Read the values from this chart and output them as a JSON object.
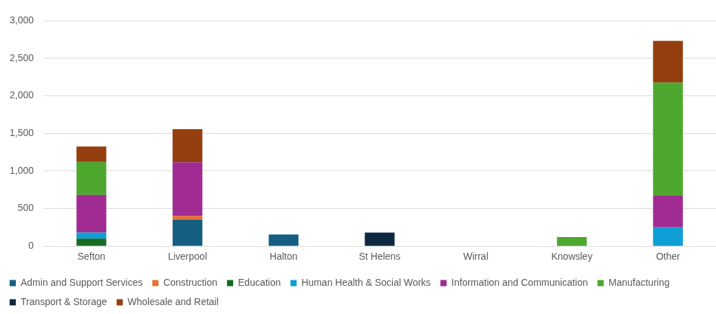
{
  "chart_data": {
    "type": "bar",
    "stacked": true,
    "categories": [
      "Sefton",
      "Liverpool",
      "Halton",
      "St Helens",
      "Wirral",
      "Knowsley",
      "Other"
    ],
    "ylim": [
      0,
      3000
    ],
    "yticks": [
      {
        "value": 0,
        "label": "0"
      },
      {
        "value": 500,
        "label": "500"
      },
      {
        "value": 1000,
        "label": "1,000"
      },
      {
        "value": 1500,
        "label": "1,500"
      },
      {
        "value": 2000,
        "label": "2,000"
      },
      {
        "value": 2500,
        "label": "2,500"
      },
      {
        "value": 3000,
        "label": "3,000"
      }
    ],
    "grid": "y",
    "legend": "bottom",
    "series": [
      {
        "name": "Admin and Support Services",
        "color": "#156082",
        "values": [
          null,
          350,
          155,
          null,
          null,
          null,
          null
        ]
      },
      {
        "name": "Construction",
        "color": "#e97132",
        "values": [
          null,
          50,
          null,
          null,
          null,
          null,
          null
        ]
      },
      {
        "name": "Education",
        "color": "#196b24",
        "values": [
          100,
          null,
          null,
          null,
          null,
          null,
          null
        ]
      },
      {
        "name": "Human Health & Social Works",
        "color": "#0f9ed5",
        "values": [
          80,
          null,
          null,
          null,
          null,
          null,
          250
        ]
      },
      {
        "name": "Information and Communication",
        "color": "#a02b93",
        "values": [
          500,
          715,
          null,
          null,
          null,
          null,
          425
        ]
      },
      {
        "name": "Manufacturing",
        "color": "#4ea72e",
        "values": [
          440,
          null,
          null,
          null,
          null,
          120,
          1500
        ]
      },
      {
        "name": "Transport & Storage",
        "color": "#0e2841",
        "values": [
          null,
          null,
          null,
          180,
          null,
          null,
          null
        ]
      },
      {
        "name": "Wholesale and Retail",
        "color": "#953e0f",
        "values": [
          205,
          440,
          null,
          null,
          null,
          null,
          555
        ]
      }
    ]
  }
}
